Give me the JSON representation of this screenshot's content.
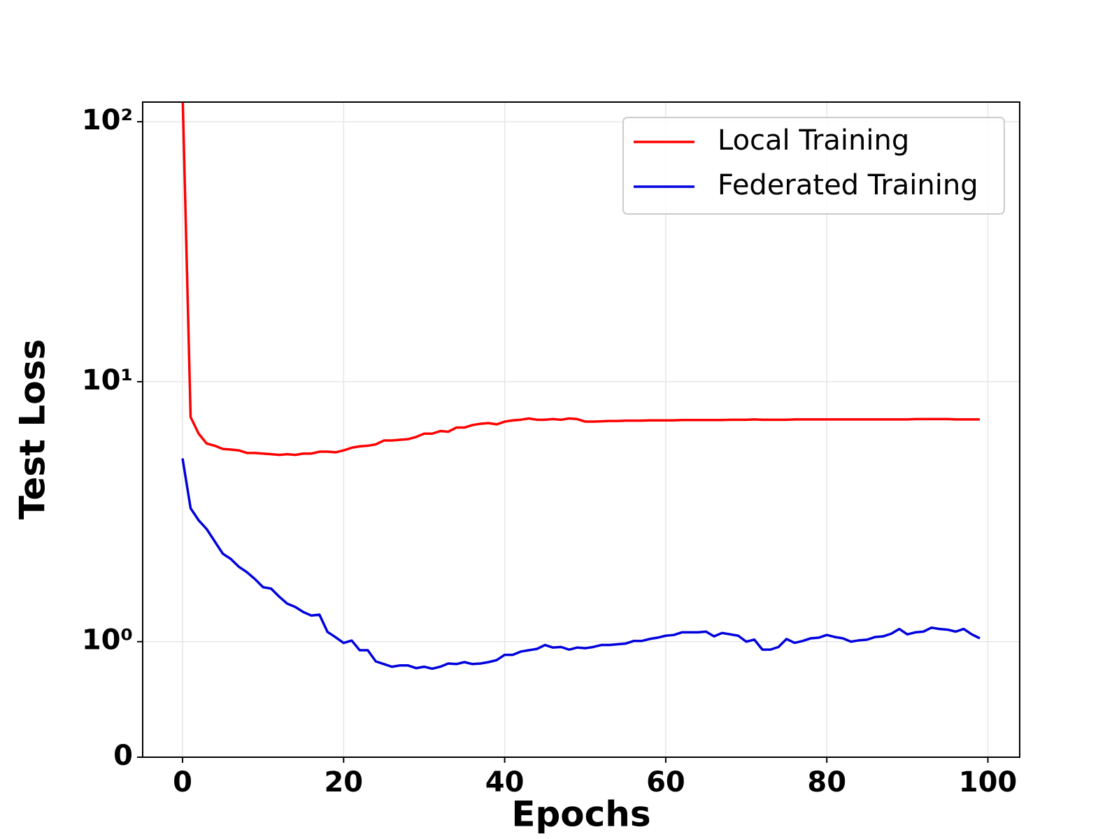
{
  "chart_data": {
    "type": "line",
    "xlabel": "Epochs",
    "ylabel": "Test Loss",
    "x": [
      0,
      1,
      2,
      3,
      4,
      5,
      6,
      7,
      8,
      9,
      10,
      11,
      12,
      13,
      14,
      15,
      16,
      17,
      18,
      19,
      20,
      21,
      22,
      23,
      24,
      25,
      26,
      27,
      28,
      29,
      30,
      31,
      32,
      33,
      34,
      35,
      36,
      37,
      38,
      39,
      40,
      41,
      42,
      43,
      44,
      45,
      46,
      47,
      48,
      49,
      50,
      51,
      52,
      53,
      54,
      55,
      56,
      57,
      58,
      59,
      60,
      61,
      62,
      63,
      64,
      65,
      66,
      67,
      68,
      69,
      70,
      71,
      72,
      73,
      74,
      75,
      76,
      77,
      78,
      79,
      80,
      81,
      82,
      83,
      84,
      85,
      86,
      87,
      88,
      89,
      90,
      91,
      92,
      93,
      94,
      95,
      96,
      97,
      98,
      99
    ],
    "series": [
      {
        "name": "Local Training",
        "color": "#ff0000",
        "values": [
          130,
          7.31,
          6.31,
          5.78,
          5.67,
          5.51,
          5.48,
          5.44,
          5.32,
          5.32,
          5.29,
          5.26,
          5.23,
          5.26,
          5.23,
          5.29,
          5.29,
          5.38,
          5.38,
          5.35,
          5.44,
          5.57,
          5.64,
          5.67,
          5.74,
          5.94,
          5.94,
          5.98,
          6.01,
          6.13,
          6.31,
          6.31,
          6.46,
          6.42,
          6.66,
          6.66,
          6.81,
          6.89,
          6.93,
          6.85,
          7.02,
          7.1,
          7.14,
          7.22,
          7.14,
          7.14,
          7.18,
          7.14,
          7.22,
          7.18,
          7.02,
          7.02,
          7.04,
          7.06,
          7.06,
          7.08,
          7.08,
          7.08,
          7.1,
          7.1,
          7.1,
          7.1,
          7.12,
          7.12,
          7.12,
          7.12,
          7.12,
          7.12,
          7.14,
          7.14,
          7.14,
          7.16,
          7.14,
          7.14,
          7.14,
          7.14,
          7.16,
          7.16,
          7.16,
          7.16,
          7.16,
          7.16,
          7.16,
          7.16,
          7.16,
          7.16,
          7.16,
          7.16,
          7.16,
          7.16,
          7.16,
          7.18,
          7.18,
          7.18,
          7.18,
          7.18,
          7.16,
          7.16,
          7.16,
          7.16
        ]
      },
      {
        "name": "Federated Training",
        "color": "#0000dd",
        "values": [
          5.07,
          3.26,
          2.93,
          2.71,
          2.43,
          2.18,
          2.08,
          1.94,
          1.85,
          1.74,
          1.62,
          1.6,
          1.49,
          1.4,
          1.36,
          1.3,
          1.26,
          1.27,
          1.09,
          1.04,
          0.989,
          1.01,
          0.926,
          0.926,
          0.829,
          0.806,
          0.783,
          0.794,
          0.794,
          0.771,
          0.783,
          0.766,
          0.783,
          0.811,
          0.806,
          0.823,
          0.806,
          0.811,
          0.823,
          0.84,
          0.886,
          0.886,
          0.914,
          0.926,
          0.937,
          0.971,
          0.949,
          0.954,
          0.931,
          0.949,
          0.943,
          0.954,
          0.971,
          0.971,
          0.977,
          0.983,
          1.006,
          1.006,
          1.024,
          1.036,
          1.054,
          1.061,
          1.086,
          1.086,
          1.086,
          1.093,
          1.048,
          1.08,
          1.067,
          1.054,
          1.0,
          1.018,
          0.931,
          0.931,
          0.954,
          1.024,
          0.99,
          1.006,
          1.03,
          1.036,
          1.061,
          1.042,
          1.03,
          1.0,
          1.012,
          1.018,
          1.042,
          1.048,
          1.073,
          1.119,
          1.067,
          1.086,
          1.093,
          1.132,
          1.119,
          1.112,
          1.093,
          1.119,
          1.067,
          1.03
        ]
      }
    ],
    "xlim": [
      -4.95,
      103.95
    ],
    "xticks": [
      0,
      20,
      40,
      60,
      80,
      100
    ],
    "ylim": [
      0,
      119
    ],
    "yticks": [
      0,
      {
        "value": 1,
        "label": "10⁰"
      },
      {
        "value": 10,
        "label": "10¹"
      },
      {
        "value": 100,
        "label": "10²"
      }
    ],
    "yscale": "symlog",
    "linthresh": 1,
    "linscale": 0.4,
    "grid": true,
    "legend": "upper right"
  }
}
